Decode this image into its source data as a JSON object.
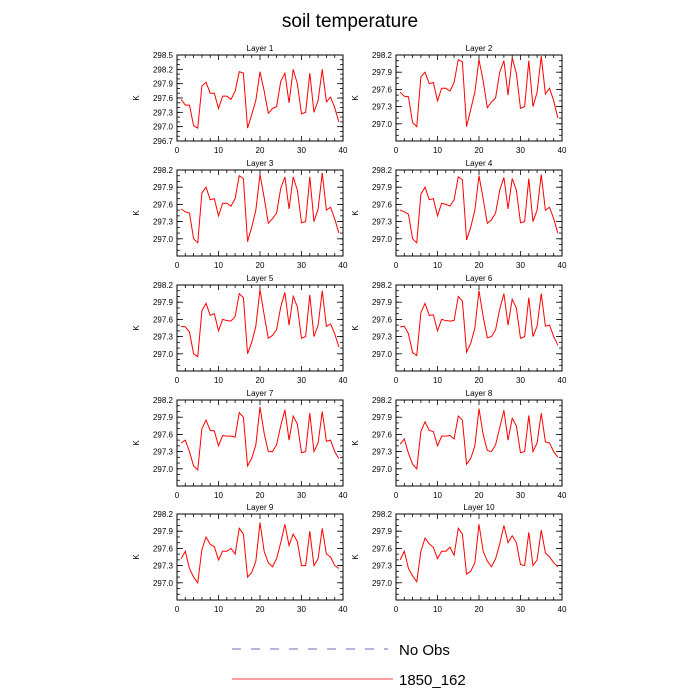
{
  "chart_data": {
    "type": "line",
    "title": "soil temperature",
    "xlim": [
      0,
      40
    ],
    "xticks": [
      0,
      10,
      20,
      30,
      40
    ],
    "ylabel": "K",
    "colors": {
      "model": "#ff0000",
      "obs": "#4040a0"
    },
    "legend": [
      {
        "label": "No Obs",
        "style": "dashed"
      },
      {
        "label": "1850_162",
        "style": "solid"
      }
    ],
    "x": [
      1,
      2,
      3,
      4,
      5,
      6,
      7,
      8,
      9,
      10,
      11,
      12,
      13,
      14,
      15,
      16,
      17,
      18,
      19,
      20,
      21,
      22,
      23,
      24,
      25,
      26,
      27,
      28,
      29,
      30,
      31,
      32,
      33,
      34,
      35,
      36,
      37,
      38,
      39
    ],
    "panels": [
      {
        "title": "Layer 1",
        "ylim": [
          296.7,
          298.5
        ],
        "yticks": [
          "298.5",
          "298.2",
          "297.9",
          "297.6",
          "297.3",
          "297.0",
          "296.7"
        ],
        "values": [
          297.57,
          297.45,
          297.45,
          297.02,
          296.97,
          297.85,
          297.93,
          297.7,
          297.7,
          297.38,
          297.64,
          297.64,
          297.57,
          297.74,
          298.15,
          298.12,
          296.97,
          297.25,
          297.55,
          298.15,
          297.75,
          297.28,
          297.38,
          297.42,
          297.95,
          298.12,
          297.5,
          298.2,
          297.9,
          297.27,
          297.3,
          298.12,
          297.3,
          297.55,
          298.2,
          297.52,
          297.62,
          297.4,
          297.1
        ]
      },
      {
        "title": "Layer 2",
        "ylim": [
          296.7,
          298.2
        ],
        "yticks": [
          "298.2",
          "297.9",
          "297.6",
          "297.3",
          "297.0"
        ],
        "values": [
          297.55,
          297.48,
          297.47,
          297.02,
          296.95,
          297.82,
          297.9,
          297.7,
          297.72,
          297.4,
          297.62,
          297.62,
          297.57,
          297.72,
          298.12,
          298.08,
          296.95,
          297.25,
          297.55,
          298.12,
          297.75,
          297.28,
          297.38,
          297.45,
          297.9,
          298.1,
          297.5,
          298.15,
          297.88,
          297.27,
          297.3,
          298.1,
          297.3,
          297.55,
          298.18,
          297.52,
          297.62,
          297.4,
          297.1
        ]
      },
      {
        "title": "Layer 3",
        "ylim": [
          296.7,
          298.2
        ],
        "yticks": [
          "298.2",
          "297.9",
          "297.6",
          "297.3",
          "297.0"
        ],
        "values": [
          297.52,
          297.47,
          297.45,
          297.0,
          296.93,
          297.8,
          297.9,
          297.68,
          297.7,
          297.4,
          297.62,
          297.62,
          297.57,
          297.7,
          298.1,
          298.05,
          296.95,
          297.2,
          297.5,
          298.12,
          297.72,
          297.27,
          297.35,
          297.45,
          297.88,
          298.08,
          297.52,
          298.08,
          297.85,
          297.28,
          297.3,
          298.08,
          297.3,
          297.52,
          298.15,
          297.5,
          297.55,
          297.35,
          297.1
        ]
      },
      {
        "title": "Layer 4",
        "ylim": [
          296.7,
          298.2
        ],
        "yticks": [
          "298.2",
          "297.9",
          "297.6",
          "297.3",
          "297.0"
        ],
        "values": [
          297.5,
          297.47,
          297.43,
          297.0,
          296.93,
          297.78,
          297.9,
          297.68,
          297.7,
          297.4,
          297.62,
          297.6,
          297.57,
          297.68,
          298.08,
          298.03,
          296.98,
          297.2,
          297.5,
          298.1,
          297.7,
          297.27,
          297.33,
          297.45,
          297.85,
          298.07,
          297.52,
          298.05,
          297.85,
          297.28,
          297.3,
          298.05,
          297.3,
          297.5,
          298.12,
          297.5,
          297.55,
          297.35,
          297.1
        ]
      },
      {
        "title": "Layer 5",
        "ylim": [
          296.7,
          298.2
        ],
        "yticks": [
          "298.2",
          "297.9",
          "297.6",
          "297.3",
          "297.0"
        ],
        "values": [
          297.48,
          297.47,
          297.38,
          297.0,
          296.95,
          297.75,
          297.88,
          297.67,
          297.7,
          297.4,
          297.6,
          297.58,
          297.57,
          297.65,
          298.05,
          297.98,
          297.0,
          297.2,
          297.48,
          298.12,
          297.68,
          297.27,
          297.32,
          297.42,
          297.82,
          298.07,
          297.5,
          298.0,
          297.82,
          297.27,
          297.3,
          298.03,
          297.3,
          297.5,
          298.1,
          297.48,
          297.52,
          297.35,
          297.12
        ]
      },
      {
        "title": "Layer 6",
        "ylim": [
          296.7,
          298.2
        ],
        "yticks": [
          "298.2",
          "297.9",
          "297.6",
          "297.3",
          "297.0"
        ],
        "values": [
          297.47,
          297.48,
          297.35,
          297.02,
          296.97,
          297.72,
          297.88,
          297.67,
          297.68,
          297.4,
          297.6,
          297.58,
          297.57,
          297.58,
          298.0,
          297.92,
          297.03,
          297.18,
          297.45,
          298.1,
          297.65,
          297.28,
          297.3,
          297.42,
          297.78,
          298.05,
          297.5,
          297.95,
          297.8,
          297.27,
          297.3,
          297.98,
          297.3,
          297.48,
          298.05,
          297.48,
          297.5,
          297.3,
          297.15
        ]
      },
      {
        "title": "Layer 7",
        "ylim": [
          296.7,
          298.2
        ],
        "yticks": [
          "298.2",
          "297.9",
          "297.6",
          "297.3",
          "297.0"
        ],
        "values": [
          297.45,
          297.5,
          297.3,
          297.05,
          296.98,
          297.7,
          297.85,
          297.67,
          297.66,
          297.4,
          297.58,
          297.57,
          297.57,
          297.55,
          297.98,
          297.9,
          297.05,
          297.18,
          297.42,
          298.08,
          297.62,
          297.3,
          297.3,
          297.42,
          297.75,
          298.03,
          297.5,
          297.92,
          297.78,
          297.28,
          297.3,
          297.97,
          297.3,
          297.45,
          298.0,
          297.48,
          297.5,
          297.3,
          297.18
        ]
      },
      {
        "title": "Layer 8",
        "ylim": [
          296.7,
          298.2
        ],
        "yticks": [
          "298.2",
          "297.9",
          "297.6",
          "297.3",
          "297.0"
        ],
        "values": [
          297.43,
          297.52,
          297.27,
          297.08,
          297.0,
          297.65,
          297.82,
          297.67,
          297.65,
          297.4,
          297.57,
          297.57,
          297.58,
          297.52,
          297.92,
          297.85,
          297.08,
          297.18,
          297.4,
          298.05,
          297.6,
          297.32,
          297.3,
          297.42,
          297.72,
          298.02,
          297.5,
          297.88,
          297.75,
          297.28,
          297.3,
          297.93,
          297.3,
          297.45,
          297.97,
          297.47,
          297.45,
          297.3,
          297.2
        ]
      },
      {
        "title": "Layer 9",
        "ylim": [
          296.7,
          298.2
        ],
        "yticks": [
          "298.2",
          "297.9",
          "297.6",
          "297.3",
          "297.0"
        ],
        "values": [
          297.42,
          297.55,
          297.25,
          297.1,
          297.0,
          297.58,
          297.8,
          297.67,
          297.63,
          297.4,
          297.55,
          297.55,
          297.6,
          297.5,
          297.95,
          297.85,
          297.1,
          297.18,
          297.38,
          298.05,
          297.55,
          297.35,
          297.28,
          297.42,
          297.7,
          298.02,
          297.65,
          297.85,
          297.72,
          297.3,
          297.3,
          297.9,
          297.3,
          297.42,
          297.95,
          297.5,
          297.45,
          297.3,
          297.25
        ]
      },
      {
        "title": "Layer 10",
        "ylim": [
          296.7,
          298.2
        ],
        "yticks": [
          "298.2",
          "297.9",
          "297.6",
          "297.3",
          "297.0"
        ],
        "values": [
          297.4,
          297.55,
          297.25,
          297.12,
          297.02,
          297.55,
          297.78,
          297.68,
          297.62,
          297.42,
          297.55,
          297.55,
          297.62,
          297.48,
          297.95,
          297.85,
          297.15,
          297.2,
          297.35,
          298.02,
          297.55,
          297.38,
          297.28,
          297.42,
          297.68,
          298.0,
          297.7,
          297.82,
          297.7,
          297.32,
          297.3,
          297.88,
          297.3,
          297.4,
          297.92,
          297.52,
          297.45,
          297.35,
          297.28
        ]
      }
    ]
  }
}
